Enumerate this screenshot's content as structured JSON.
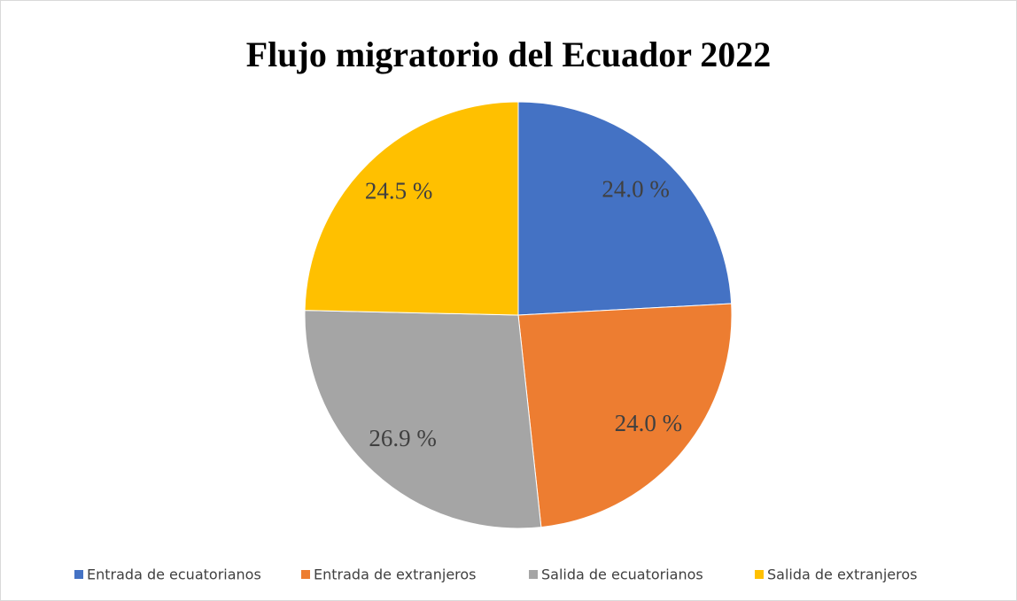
{
  "chart_data": {
    "type": "pie",
    "title": "Flujo migratorio del Ecuador 2022",
    "categories": [
      "Entrada de ecuatorianos",
      "Entrada de extranjeros",
      "Salida de ecuatorianos",
      "Salida de extranjeros"
    ],
    "values": [
      24.0,
      24.0,
      26.9,
      24.5
    ],
    "value_labels": [
      "24.0 %",
      "24.0 %",
      "26.9 %",
      "24.5 %"
    ],
    "colors": [
      "#4472c4",
      "#ed7d31",
      "#a5a5a5",
      "#ffc000"
    ],
    "legend": "bottom"
  }
}
